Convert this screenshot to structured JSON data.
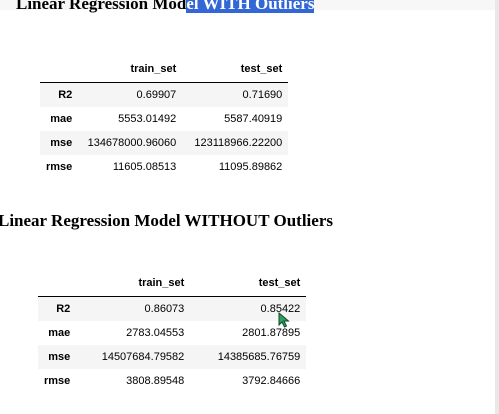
{
  "section1": {
    "title_pre": "Linear Regression Mod",
    "title_highlight": "el WITH Outliers",
    "columns": [
      "train_set",
      "test_set"
    ],
    "rows": [
      {
        "label": "R2",
        "train": "0.69907",
        "test": "0.71690"
      },
      {
        "label": "mae",
        "train": "5553.01492",
        "test": "5587.40919"
      },
      {
        "label": "mse",
        "train": "134678000.96060",
        "test": "123118966.22200"
      },
      {
        "label": "rmse",
        "train": "11605.08513",
        "test": "11095.89862"
      }
    ]
  },
  "section2": {
    "title": "Linear Regression Model WITHOUT Outliers",
    "columns": [
      "train_set",
      "test_set"
    ],
    "rows": [
      {
        "label": "R2",
        "train": "0.86073",
        "test": "0.85422"
      },
      {
        "label": "mae",
        "train": "2783.04553",
        "test": "2801.87895"
      },
      {
        "label": "mse",
        "train": "14507684.79582",
        "test": "14385685.76759"
      },
      {
        "label": "rmse",
        "train": "3808.89548",
        "test": "3792.84666"
      }
    ]
  },
  "colors": {
    "selection": "#3367d6",
    "cursor": "#2f9e5f"
  },
  "icons": {
    "cursor": "mouse-pointer-icon"
  }
}
